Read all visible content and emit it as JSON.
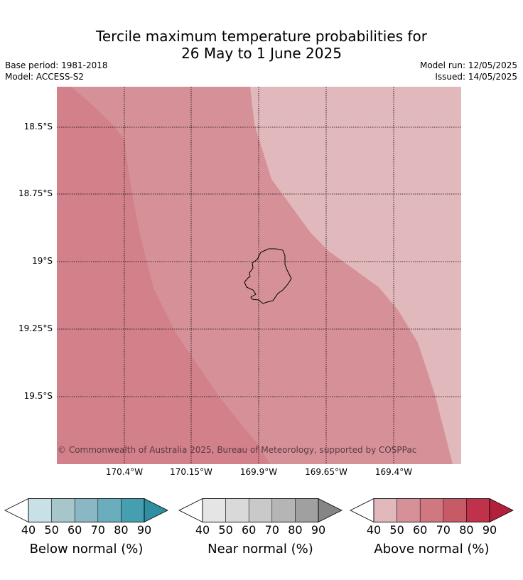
{
  "title_line1": "Tercile maximum temperature probabilities for",
  "title_line2": "26 May to 1 June 2025",
  "base_period": "Base period: 1981-2018",
  "model": "Model: ACCESS-S2",
  "model_run": "Model run: 12/05/2025",
  "issued": "Issued: 14/05/2025",
  "lat_ticks": [
    "18.5°S",
    "18.75°S",
    "19°S",
    "19.25°S",
    "19.5°S"
  ],
  "lon_ticks": [
    "170.4°W",
    "170.15°W",
    "169.9°W",
    "169.65°W",
    "169.4°W"
  ],
  "copyright": "© Commonwealth of Australia 2025, Bureau of Meteorology, supported by COSPPac",
  "colors": {
    "above_60_70": "#d28089",
    "above_50_60": "#d69198",
    "above_40_50": "#e1b8bc",
    "coast": "#000000"
  },
  "colorbars": [
    {
      "label": "Below normal (%)",
      "ticks": [
        "40",
        "50",
        "60",
        "70",
        "80",
        "90"
      ],
      "colors": [
        "#c7e1e6",
        "#a7c6cc",
        "#89b8c4",
        "#6aaebe",
        "#469fb0",
        "#2f8ea0"
      ]
    },
    {
      "label": "Near normal (%)",
      "ticks": [
        "40",
        "50",
        "60",
        "70",
        "80",
        "90"
      ],
      "colors": [
        "#e5e5e5",
        "#d9d9d9",
        "#c9c9c9",
        "#b5b5b5",
        "#a0a0a0",
        "#858585"
      ]
    },
    {
      "label": "Above normal (%)",
      "ticks": [
        "40",
        "50",
        "60",
        "70",
        "80",
        "90"
      ],
      "colors": [
        "#e1b8bc",
        "#d69198",
        "#d07880",
        "#c65a66",
        "#bf3249",
        "#b3203b"
      ]
    }
  ]
}
